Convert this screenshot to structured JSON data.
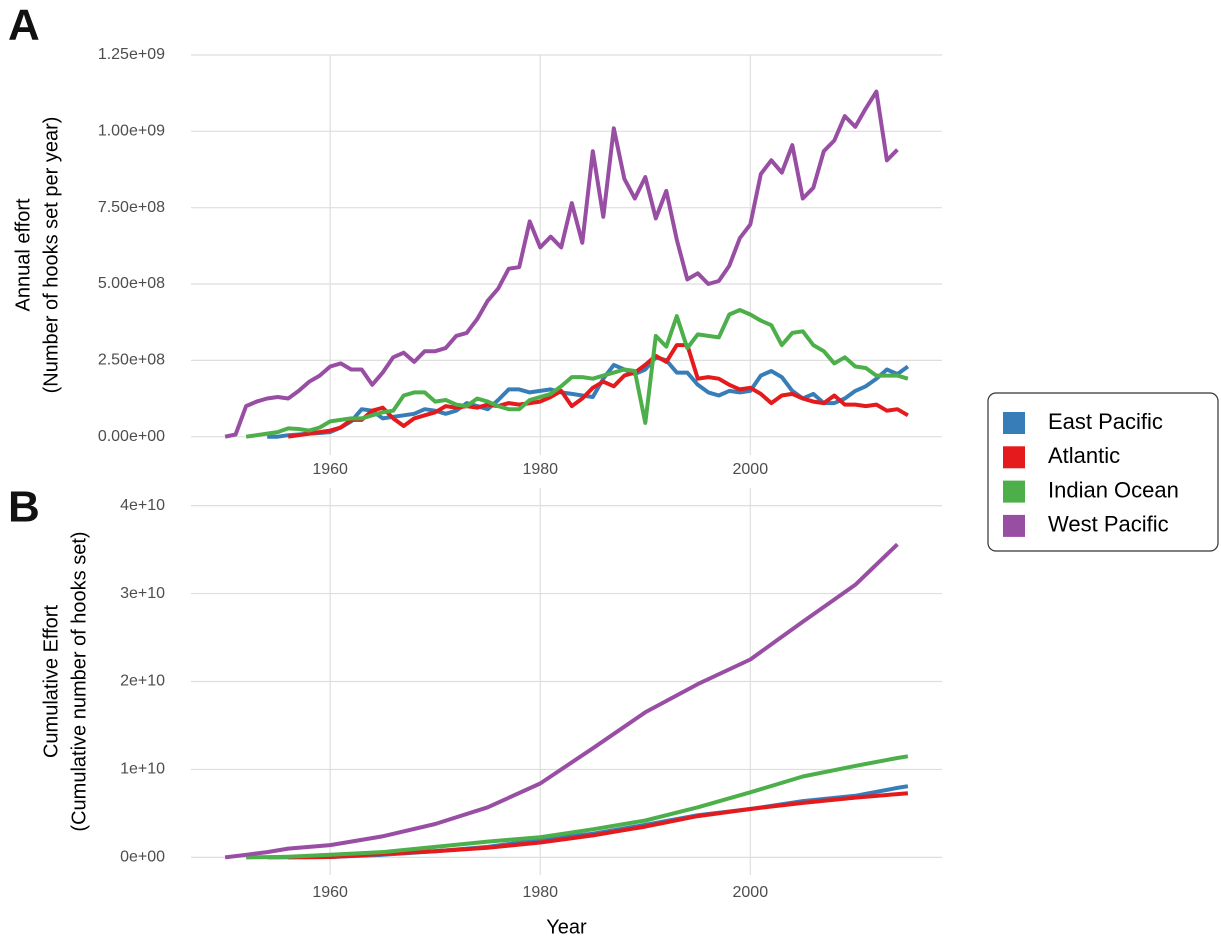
{
  "chart_data": [
    {
      "type": "line",
      "panel_label": "A",
      "ylabel": [
        "Annual effort",
        "(Number of hooks set per year)"
      ],
      "x": [
        1950,
        1951,
        1952,
        1953,
        1954,
        1955,
        1956,
        1957,
        1958,
        1959,
        1960,
        1961,
        1962,
        1963,
        1964,
        1965,
        1966,
        1967,
        1968,
        1969,
        1970,
        1971,
        1972,
        1973,
        1974,
        1975,
        1976,
        1977,
        1978,
        1979,
        1980,
        1981,
        1982,
        1983,
        1984,
        1985,
        1986,
        1987,
        1988,
        1989,
        1990,
        1991,
        1992,
        1993,
        1994,
        1995,
        1996,
        1997,
        1998,
        1999,
        2000,
        2001,
        2002,
        2003,
        2004,
        2005,
        2006,
        2007,
        2008,
        2009,
        2010,
        2011,
        2012,
        2013,
        2014,
        2015
      ],
      "xlim": [
        1946.75,
        2018.25
      ],
      "xticks": [
        1960,
        1980,
        2000
      ],
      "ylim": [
        -60000000.0,
        1250000000.0
      ],
      "yticks": [
        {
          "value": 0,
          "label": "0.00e+00"
        },
        {
          "value": 250000000.0,
          "label": "2.50e+08"
        },
        {
          "value": 500000000.0,
          "label": "5.00e+08"
        },
        {
          "value": 750000000.0,
          "label": "7.50e+08"
        },
        {
          "value": 1000000000.0,
          "label": "1.00e+09"
        },
        {
          "value": 1250000000.0,
          "label": "1.25e+09"
        }
      ],
      "grid": true,
      "series": [
        {
          "name": "East Pacific",
          "color": "#377eb8",
          "values": [
            null,
            null,
            null,
            null,
            0,
            0,
            5000000.0,
            7000000.0,
            10000000.0,
            12000000.0,
            15000000.0,
            30000000.0,
            50000000.0,
            90000000.0,
            85000000.0,
            60000000.0,
            65000000.0,
            70000000.0,
            75000000.0,
            90000000.0,
            85000000.0,
            75000000.0,
            85000000.0,
            110000000.0,
            100000000.0,
            90000000.0,
            120000000.0,
            155000000.0,
            155000000.0,
            145000000.0,
            150000000.0,
            155000000.0,
            145000000.0,
            140000000.0,
            135000000.0,
            130000000.0,
            190000000.0,
            235000000.0,
            220000000.0,
            205000000.0,
            220000000.0,
            260000000.0,
            250000000.0,
            210000000.0,
            210000000.0,
            170000000.0,
            145000000.0,
            135000000.0,
            150000000.0,
            145000000.0,
            150000000.0,
            200000000.0,
            215000000.0,
            195000000.0,
            150000000.0,
            125000000.0,
            140000000.0,
            110000000.0,
            110000000.0,
            125000000.0,
            150000000.0,
            165000000.0,
            190000000.0,
            220000000.0,
            205000000.0,
            230000000.0
          ]
        },
        {
          "name": "Atlantic",
          "color": "#e41a1c",
          "values": [
            null,
            null,
            null,
            null,
            null,
            null,
            0,
            5000000.0,
            10000000.0,
            15000000.0,
            20000000.0,
            30000000.0,
            55000000.0,
            55000000.0,
            85000000.0,
            95000000.0,
            60000000.0,
            35000000.0,
            60000000.0,
            70000000.0,
            80000000.0,
            100000000.0,
            95000000.0,
            100000000.0,
            95000000.0,
            105000000.0,
            100000000.0,
            110000000.0,
            105000000.0,
            110000000.0,
            115000000.0,
            130000000.0,
            150000000.0,
            100000000.0,
            125000000.0,
            160000000.0,
            180000000.0,
            165000000.0,
            200000000.0,
            210000000.0,
            235000000.0,
            265000000.0,
            245000000.0,
            300000000.0,
            300000000.0,
            190000000.0,
            195000000.0,
            190000000.0,
            170000000.0,
            155000000.0,
            160000000.0,
            140000000.0,
            110000000.0,
            135000000.0,
            140000000.0,
            125000000.0,
            115000000.0,
            110000000.0,
            135000000.0,
            105000000.0,
            105000000.0,
            100000000.0,
            105000000.0,
            85000000.0,
            90000000.0,
            70000000.0
          ]
        },
        {
          "name": "Indian Ocean",
          "color": "#4daf4a",
          "values": [
            null,
            null,
            0,
            5000000.0,
            10000000.0,
            15000000.0,
            27000000.0,
            25000000.0,
            20000000.0,
            30000000.0,
            50000000.0,
            55000000.0,
            60000000.0,
            60000000.0,
            70000000.0,
            80000000.0,
            85000000.0,
            135000000.0,
            145000000.0,
            145000000.0,
            115000000.0,
            120000000.0,
            105000000.0,
            100000000.0,
            125000000.0,
            115000000.0,
            100000000.0,
            90000000.0,
            90000000.0,
            120000000.0,
            130000000.0,
            140000000.0,
            165000000.0,
            195000000.0,
            195000000.0,
            190000000.0,
            200000000.0,
            210000000.0,
            220000000.0,
            215000000.0,
            45000000.0,
            330000000.0,
            295000000.0,
            395000000.0,
            290000000.0,
            335000000.0,
            330000000.0,
            325000000.0,
            400000000.0,
            415000000.0,
            400000000.0,
            380000000.0,
            365000000.0,
            300000000.0,
            340000000.0,
            345000000.0,
            300000000.0,
            280000000.0,
            240000000.0,
            260000000.0,
            230000000.0,
            225000000.0,
            200000000.0,
            200000000.0,
            200000000.0,
            190000000.0
          ]
        },
        {
          "name": "West Pacific",
          "color": "#984ea3",
          "values": [
            0,
            7000000.0,
            100000000.0,
            115000000.0,
            125000000.0,
            130000000.0,
            125000000.0,
            150000000.0,
            180000000.0,
            200000000.0,
            230000000.0,
            240000000.0,
            220000000.0,
            220000000.0,
            170000000.0,
            210000000.0,
            260000000.0,
            275000000.0,
            245000000.0,
            280000000.0,
            280000000.0,
            290000000.0,
            330000000.0,
            340000000.0,
            385000000.0,
            445000000.0,
            485000000.0,
            550000000.0,
            555000000.0,
            705000000.0,
            620000000.0,
            655000000.0,
            620000000.0,
            765000000.0,
            635000000.0,
            935000000.0,
            720000000.0,
            1010000000.0,
            845000000.0,
            780000000.0,
            850000000.0,
            715000000.0,
            805000000.0,
            645000000.0,
            515000000.0,
            535000000.0,
            500000000.0,
            510000000.0,
            560000000.0,
            650000000.0,
            695000000.0,
            860000000.0,
            905000000.0,
            865000000.0,
            955000000.0,
            780000000.0,
            815000000.0,
            935000000.0,
            970000000.0,
            1050000000.0,
            1015000000.0,
            1075000000.0,
            1130000000.0,
            905000000.0,
            940000000.0,
            null
          ]
        }
      ]
    },
    {
      "type": "line",
      "panel_label": "B",
      "ylabel": [
        "Cumulative Effort",
        "(Cumulative number of hooks set)"
      ],
      "xlabel": "Year",
      "x": [
        1950,
        1952,
        1954,
        1955,
        1956,
        1960,
        1965,
        1970,
        1975,
        1980,
        1985,
        1990,
        1995,
        2000,
        2005,
        2010,
        2014,
        2015
      ],
      "xlim": [
        1946.75,
        2018.25
      ],
      "xticks": [
        1960,
        1980,
        2000
      ],
      "ylim": [
        -2000000000.0,
        42000000000.0
      ],
      "yticks": [
        {
          "value": 0,
          "label": "0e+00"
        },
        {
          "value": 10000000000.0,
          "label": "1e+10"
        },
        {
          "value": 20000000000.0,
          "label": "2e+10"
        },
        {
          "value": 30000000000.0,
          "label": "3e+10"
        },
        {
          "value": 40000000000.0,
          "label": "4e+10"
        }
      ],
      "grid": true,
      "series": [
        {
          "name": "East Pacific",
          "color": "#377eb8",
          "values": [
            null,
            null,
            0,
            0,
            10000000.0,
            50000000.0,
            300000000.0,
            700000000.0,
            1200000000.0,
            2000000000.0,
            2700000000.0,
            3700000000.0,
            4800000000.0,
            5500000000.0,
            6400000000.0,
            7000000000.0,
            7900000000.0,
            8100000000.0
          ]
        },
        {
          "name": "Atlantic",
          "color": "#e41a1c",
          "values": [
            null,
            null,
            null,
            null,
            0,
            50000000.0,
            400000000.0,
            700000000.0,
            1100000000.0,
            1700000000.0,
            2500000000.0,
            3500000000.0,
            4700000000.0,
            5500000000.0,
            6200000000.0,
            6800000000.0,
            7200000000.0,
            7300000000.0
          ]
        },
        {
          "name": "Indian Ocean",
          "color": "#4daf4a",
          "values": [
            null,
            0,
            30000000.0,
            50000000.0,
            80000000.0,
            300000000.0,
            600000000.0,
            1200000000.0,
            1800000000.0,
            2300000000.0,
            3200000000.0,
            4200000000.0,
            5700000000.0,
            7400000000.0,
            9200000000.0,
            10400000000.0,
            11300000000.0,
            11500000000.0
          ]
        },
        {
          "name": "West Pacific",
          "color": "#984ea3",
          "values": [
            0,
            300000000.0,
            600000000.0,
            800000000.0,
            1000000000.0,
            1400000000.0,
            2400000000.0,
            3800000000.0,
            5700000000.0,
            8400000000.0,
            12400000000.0,
            16500000000.0,
            19700000000.0,
            22500000000.0,
            26800000000.0,
            31000000000.0,
            35600000000.0,
            null
          ]
        }
      ]
    }
  ]
}
